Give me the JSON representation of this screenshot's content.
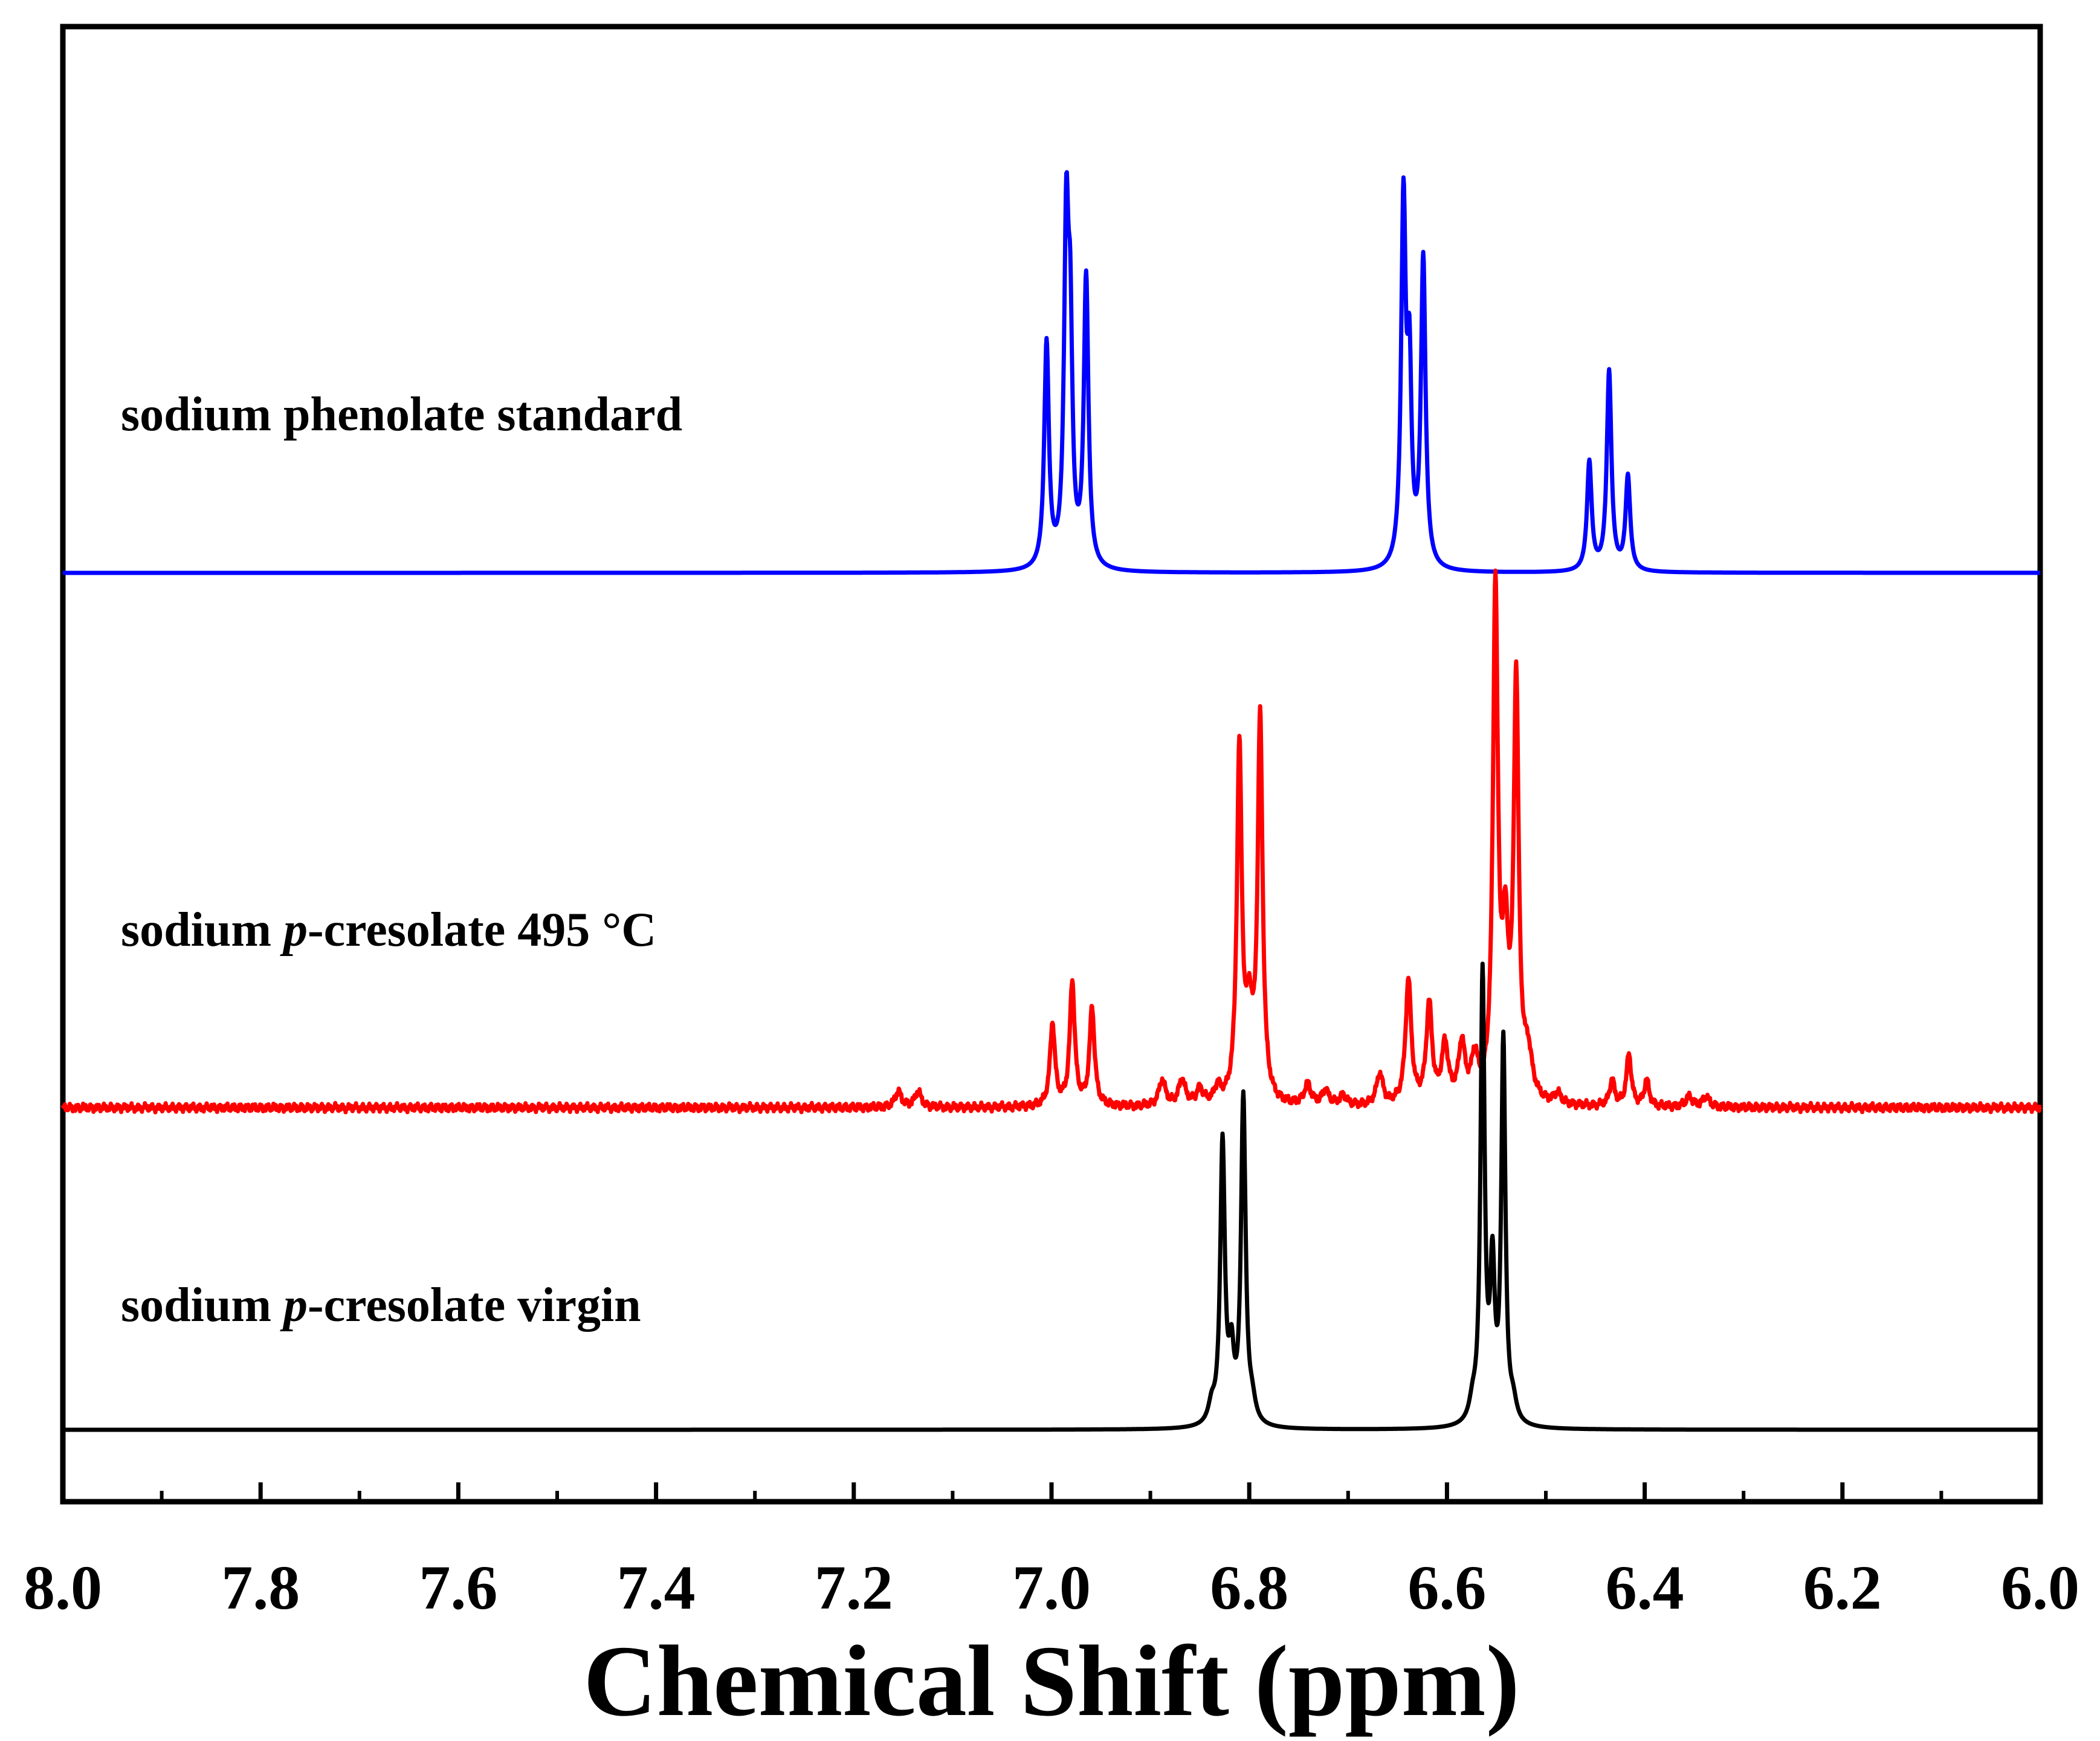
{
  "chart_data": {
    "type": "line",
    "title": "",
    "xlabel": "Chemical Shift (ppm)",
    "ylabel": "",
    "xlim": [
      8.0,
      6.0
    ],
    "x_reversed": true,
    "y_ticks_shown": false,
    "grid": false,
    "xticks": [
      "8.0",
      "7.8",
      "7.6",
      "7.4",
      "7.2",
      "7.0",
      "6.8",
      "6.6",
      "6.4",
      "6.2",
      "6.0"
    ],
    "series": [
      {
        "name": "sodium phenolate standard",
        "label_parts": [
          "sodium phenolate standard"
        ],
        "color": "#0000ff",
        "peaks": [
          {
            "ppm": 7.005,
            "height": 0.62,
            "width": 0.0028
          },
          {
            "ppm": 6.985,
            "height": 0.92,
            "width": 0.0028
          },
          {
            "ppm": 6.981,
            "height": 0.55,
            "width": 0.0025
          },
          {
            "ppm": 6.965,
            "height": 0.8,
            "width": 0.0028
          },
          {
            "ppm": 6.644,
            "height": 1.0,
            "width": 0.0028
          },
          {
            "ppm": 6.638,
            "height": 0.5,
            "width": 0.0025
          },
          {
            "ppm": 6.624,
            "height": 0.85,
            "width": 0.0028
          },
          {
            "ppm": 6.456,
            "height": 0.3,
            "width": 0.0028
          },
          {
            "ppm": 6.436,
            "height": 0.55,
            "width": 0.0028
          },
          {
            "ppm": 6.417,
            "height": 0.26,
            "width": 0.0028
          }
        ]
      },
      {
        "name": "sodium p-cresolate 495 °C",
        "label_parts": [
          "sodium ",
          "p",
          "-cresolate 495 °C"
        ],
        "color": "#ff0000",
        "peaks": [
          {
            "ppm": 7.155,
            "height": 0.03,
            "width": 0.004
          },
          {
            "ppm": 7.135,
            "height": 0.03,
            "width": 0.004
          },
          {
            "ppm": 6.999,
            "height": 0.16,
            "width": 0.003
          },
          {
            "ppm": 6.979,
            "height": 0.24,
            "width": 0.003
          },
          {
            "ppm": 6.959,
            "height": 0.19,
            "width": 0.003
          },
          {
            "ppm": 6.888,
            "height": 0.05,
            "width": 0.004
          },
          {
            "ppm": 6.868,
            "height": 0.05,
            "width": 0.004
          },
          {
            "ppm": 6.85,
            "height": 0.03,
            "width": 0.004
          },
          {
            "ppm": 6.832,
            "height": 0.03,
            "width": 0.004
          },
          {
            "ppm": 6.81,
            "height": 0.68,
            "width": 0.003
          },
          {
            "ppm": 6.8,
            "height": 0.15,
            "width": 0.004
          },
          {
            "ppm": 6.789,
            "height": 0.74,
            "width": 0.003
          },
          {
            "ppm": 6.741,
            "height": 0.04,
            "width": 0.004
          },
          {
            "ppm": 6.723,
            "height": 0.03,
            "width": 0.004
          },
          {
            "ppm": 6.705,
            "height": 0.02,
            "width": 0.004
          },
          {
            "ppm": 6.668,
            "height": 0.06,
            "width": 0.004
          },
          {
            "ppm": 6.639,
            "height": 0.24,
            "width": 0.0035
          },
          {
            "ppm": 6.618,
            "height": 0.19,
            "width": 0.0035
          },
          {
            "ppm": 6.602,
            "height": 0.11,
            "width": 0.004
          },
          {
            "ppm": 6.585,
            "height": 0.11,
            "width": 0.004
          },
          {
            "ppm": 6.572,
            "height": 0.08,
            "width": 0.004
          },
          {
            "ppm": 6.551,
            "height": 0.98,
            "width": 0.003
          },
          {
            "ppm": 6.541,
            "height": 0.28,
            "width": 0.004
          },
          {
            "ppm": 6.53,
            "height": 0.8,
            "width": 0.003
          },
          {
            "ppm": 6.518,
            "height": 0.08,
            "width": 0.005
          },
          {
            "ppm": 6.488,
            "height": 0.02,
            "width": 0.004
          },
          {
            "ppm": 6.433,
            "height": 0.05,
            "width": 0.003
          },
          {
            "ppm": 6.416,
            "height": 0.1,
            "width": 0.003
          },
          {
            "ppm": 6.398,
            "height": 0.05,
            "width": 0.003
          },
          {
            "ppm": 6.355,
            "height": 0.02,
            "width": 0.004
          },
          {
            "ppm": 6.338,
            "height": 0.02,
            "width": 0.004
          }
        ]
      },
      {
        "name": "sodium p-cresolate virgin",
        "label_parts": [
          "sodium ",
          "p",
          "-cresolate virgin"
        ],
        "color": "#000000",
        "peaks": [
          {
            "ppm": 6.838,
            "height": 0.04,
            "width": 0.004
          },
          {
            "ppm": 6.827,
            "height": 0.63,
            "width": 0.0028
          },
          {
            "ppm": 6.818,
            "height": 0.14,
            "width": 0.003
          },
          {
            "ppm": 6.806,
            "height": 0.73,
            "width": 0.0028
          },
          {
            "ppm": 6.797,
            "height": 0.04,
            "width": 0.004
          },
          {
            "ppm": 6.574,
            "height": 0.04,
            "width": 0.004
          },
          {
            "ppm": 6.564,
            "height": 1.0,
            "width": 0.0025
          },
          {
            "ppm": 6.554,
            "height": 0.33,
            "width": 0.0028
          },
          {
            "ppm": 6.543,
            "height": 0.85,
            "width": 0.0025
          },
          {
            "ppm": 6.533,
            "height": 0.04,
            "width": 0.004
          }
        ]
      }
    ]
  }
}
